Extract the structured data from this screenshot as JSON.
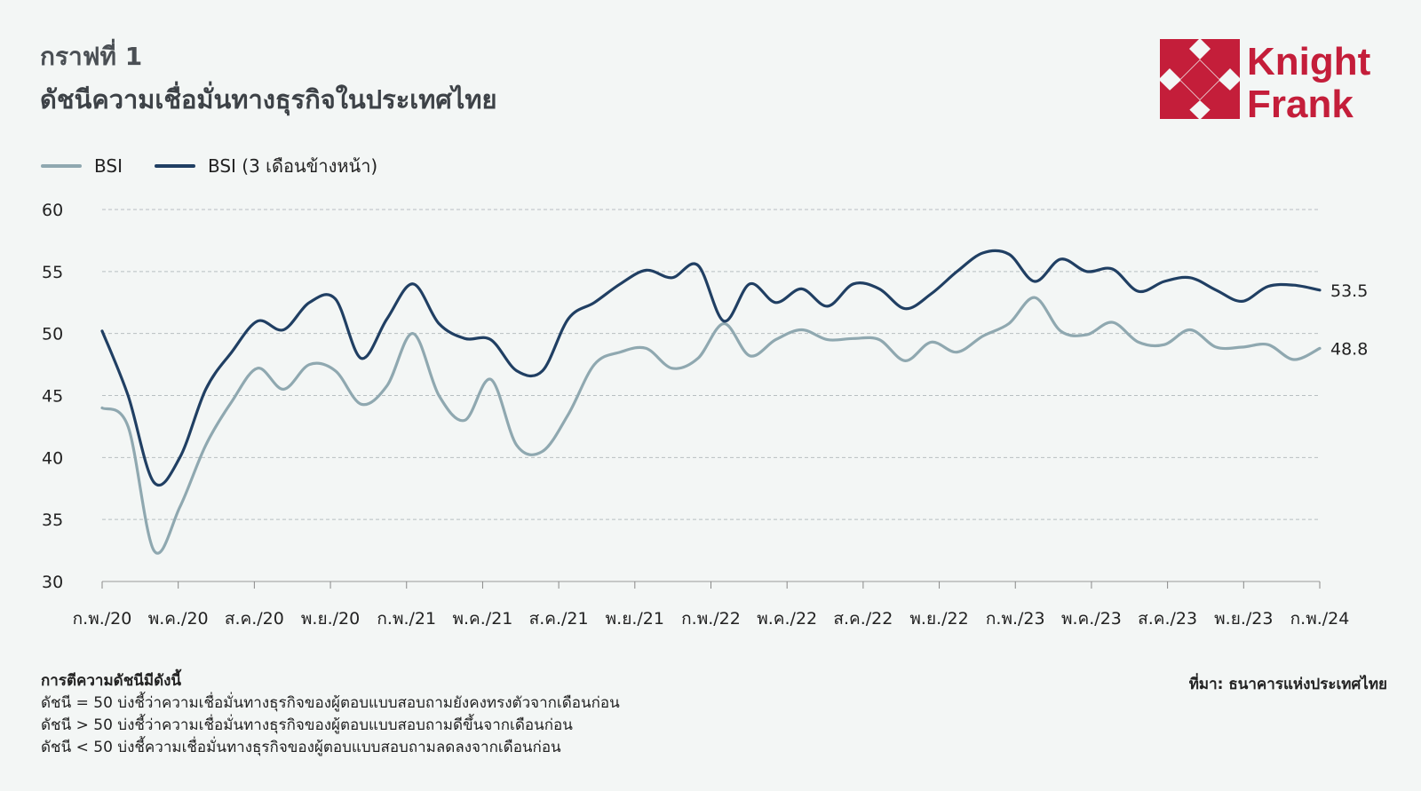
{
  "header": {
    "figure_label": "กราฟที่ 1",
    "title": "ดัชนีความเชื่อมั่นทางธุรกิจในประเทศไทย"
  },
  "logo": {
    "line1": "Knight",
    "line2": "Frank",
    "color": "#c41e3a",
    "icon": "knight-frank-diamond-icon"
  },
  "legend": [
    {
      "label": "BSI",
      "color": "#8fa8b0"
    },
    {
      "label": "BSI (3 เดือนข้างหน้า)",
      "color": "#203f63"
    }
  ],
  "chart_data": {
    "type": "line",
    "ylim": [
      30,
      60
    ],
    "yticks": [
      "30",
      "35",
      "40",
      "45",
      "50",
      "55",
      "60"
    ],
    "x_tick_labels": [
      "ก.พ./20",
      "พ.ค./20",
      "ส.ค./20",
      "พ.ย./20",
      "ก.พ./21",
      "พ.ค./21",
      "ส.ค./21",
      "พ.ย./21",
      "ก.พ./22",
      "พ.ค./22",
      "ส.ค./22",
      "พ.ย./22",
      "ก.พ./23",
      "พ.ค./23",
      "ส.ค./23",
      "พ.ย./23",
      "ก.พ./24"
    ],
    "grid": "horizontal-dashed",
    "series": [
      {
        "name": "BSI",
        "color": "#8fa8b0",
        "end_label": "48.8",
        "values": [
          44.0,
          42.5,
          32.5,
          36.0,
          41.0,
          44.5,
          47.2,
          45.5,
          47.5,
          47.0,
          44.3,
          45.8,
          50.0,
          45.0,
          43.0,
          46.3,
          41.0,
          40.5,
          43.5,
          47.5,
          48.5,
          48.8,
          47.2,
          48.0,
          50.8,
          48.2,
          49.5,
          50.3,
          49.5,
          49.6,
          49.5,
          47.8,
          49.3,
          48.5,
          49.8,
          50.8,
          52.9,
          50.2,
          49.9,
          50.9,
          49.3,
          49.1,
          50.3,
          48.9,
          48.9,
          49.1,
          47.9,
          48.8
        ]
      },
      {
        "name": "BSI (3 เดือนข้างหน้า)",
        "color": "#203f63",
        "end_label": "53.5",
        "values": [
          50.2,
          45.0,
          38.0,
          40.0,
          45.5,
          48.5,
          51.0,
          50.3,
          52.5,
          52.8,
          48.0,
          51.2,
          54.0,
          50.8,
          49.6,
          49.5,
          47.0,
          47.0,
          51.2,
          52.5,
          54.0,
          55.1,
          54.5,
          55.5,
          51.0,
          54.0,
          52.5,
          53.6,
          52.2,
          54.0,
          53.6,
          52.0,
          53.2,
          55.0,
          56.5,
          56.4,
          54.2,
          56.0,
          55.0,
          55.2,
          53.4,
          54.2,
          54.5,
          53.5,
          52.6,
          53.8,
          53.9,
          53.5
        ]
      }
    ]
  },
  "notes": {
    "title": "การตีความดัชนีมีดังนี้",
    "lines": [
      "ดัชนี = 50 บ่งชี้ว่าความเชื่อมั่นทางธุรกิจของผู้ตอบแบบสอบถามยังคงทรงตัวจากเดือนก่อน",
      "ดัชนี > 50 บ่งชี้ว่าความเชื่อมั่นทางธุรกิจของผู้ตอบแบบสอบถามดีขึ้นจากเดือนก่อน",
      "ดัชนี < 50 บ่งชี้ความเชื่อมั่นทางธุรกิจของผู้ตอบแบบสอบถามลดลงจากเดือนก่อน"
    ]
  },
  "source": "ที่มา: ธนาคารแห่งประเทศไทย"
}
